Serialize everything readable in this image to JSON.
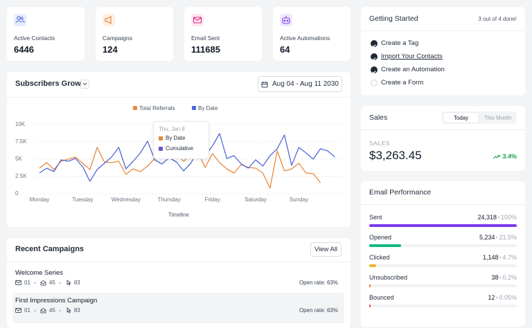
{
  "stats": [
    {
      "label": "Active Contacts",
      "value": 6446
    },
    {
      "label": "Campaigns",
      "value": 124
    },
    {
      "label": "Email Sent",
      "value": 111685
    },
    {
      "label": "Active Automations",
      "value": 64
    }
  ],
  "chart_data": {
    "type": "line",
    "title": "Subscribers Growth",
    "date_range": "Aug 04 - Aug 11 2030",
    "x_label": "Timeline",
    "categories": [
      "Monday",
      null,
      null,
      null,
      null,
      null,
      "Tuesday",
      null,
      null,
      null,
      null,
      null,
      "Wednesday",
      null,
      null,
      null,
      null,
      null,
      "Thursday",
      null,
      null,
      null,
      null,
      null,
      "Friday",
      null,
      null,
      null,
      null,
      null,
      "Saturday",
      null,
      null,
      null,
      null,
      null,
      "Sunday",
      null,
      null,
      null,
      null,
      null
    ],
    "series": [
      {
        "name": "Total Referrals",
        "color": "#e8883a",
        "values": [
          3700,
          4500,
          3500,
          4700,
          5000,
          5300,
          4400,
          3500,
          6700,
          4600,
          4500,
          4700,
          2800,
          3600,
          3200,
          4000,
          5100,
          5500,
          7100,
          5800,
          4700,
          5500,
          6000,
          3800,
          5800,
          4500,
          3600,
          3000,
          4200,
          3800,
          3700,
          3000,
          800,
          6200,
          3300,
          3600,
          4400,
          3000,
          2900,
          1600,
          null,
          null
        ]
      },
      {
        "name": "By Date",
        "color": "#5068d8",
        "values": [
          3000,
          3700,
          3200,
          4900,
          4700,
          5100,
          3900,
          1800,
          3500,
          4400,
          5300,
          6700,
          3600,
          4700,
          5900,
          7600,
          4900,
          4300,
          5200,
          4600,
          3300,
          4400,
          6300,
          5500,
          6900,
          8700,
          5100,
          5500,
          4300,
          3700,
          4900,
          4000,
          5500,
          6500,
          8500,
          4100,
          6700,
          5900,
          5000,
          6500,
          6200,
          5300
        ]
      }
    ],
    "ylim": [
      0,
      10000
    ],
    "yticks": [
      0,
      {
        "value": 2500,
        "label": "2.5K"
      },
      {
        "value": 5000,
        "label": "5K"
      },
      {
        "value": 7500,
        "label": "7.5K"
      },
      {
        "value": 10000,
        "label": "10K"
      }
    ],
    "grid": true,
    "legend": "top",
    "tooltip": {
      "title": "Thu, Jan 8",
      "items": [
        {
          "label": "By Date",
          "color": "#e8883a"
        },
        {
          "label": "Cumulative",
          "color": "#6a5acd"
        }
      ]
    }
  },
  "recent_campaigns": {
    "title": "Recent Campaigns",
    "action": "View All",
    "items": [
      {
        "name": "Welcome Series",
        "emails": "01",
        "recipients": "45",
        "clicks": "83",
        "open_rate": "Open rate: 63%",
        "highlighted": false
      },
      {
        "name": "First Impressions Campaign",
        "emails": "01",
        "recipients": "45",
        "clicks": "83",
        "open_rate": "Open rate: 63%",
        "highlighted": true
      }
    ]
  },
  "getting_started": {
    "title": "Getting Started",
    "progress": "3 out of 4 done!",
    "tasks": [
      {
        "label": "Create a Tag",
        "done": true,
        "link": false
      },
      {
        "label": "Import Your Contacts",
        "done": true,
        "link": true
      },
      {
        "label": "Create an Automation",
        "done": true,
        "link": false
      },
      {
        "label": "Create a Form",
        "done": false,
        "link": false
      }
    ]
  },
  "sales": {
    "title": "Sales",
    "tabs": [
      "Today",
      "This Month"
    ],
    "active_tab": 0,
    "metric_label": "SALES",
    "amount": "$3,263.45",
    "change": "3.4%"
  },
  "email_performance": {
    "title": "Email Performance",
    "rows": [
      {
        "label": "Sent",
        "count": {
          "value": 24318,
          "label": "24,318"
        },
        "percent": {
          "value": 100,
          "label": "100%"
        },
        "color": "#7c3aed"
      },
      {
        "label": "Opened",
        "count": {
          "value": 5234,
          "label": "5,234"
        },
        "percent": {
          "value": 21.5,
          "label": "21.5%"
        },
        "color": "#10b981"
      },
      {
        "label": "Clicked",
        "count": {
          "value": 1148,
          "label": "1,148"
        },
        "percent": {
          "value": 4.7,
          "label": "4.7%"
        },
        "color": "#f0b429"
      },
      {
        "label": "Unsubscribed",
        "count": {
          "value": 38,
          "label": "38"
        },
        "percent": {
          "value": 0.2,
          "label": "0.2%"
        },
        "color": "#ea7a2e"
      },
      {
        "label": "Bounced",
        "count": {
          "value": 12,
          "label": "12"
        },
        "percent": {
          "value": 0.05,
          "label": "0.05%"
        },
        "color": "#ef4444"
      }
    ]
  }
}
